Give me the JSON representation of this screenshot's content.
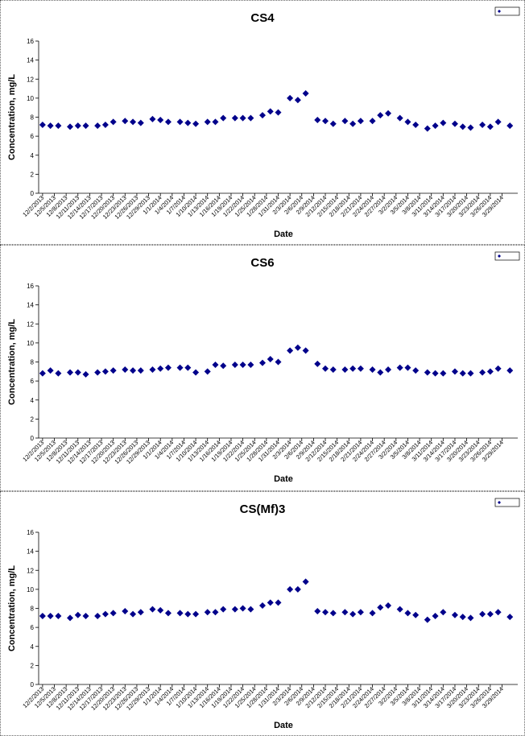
{
  "colors": {
    "marker": "#00008B",
    "axis": "#000000",
    "border": "#666666"
  },
  "chart_data": [
    {
      "type": "scatter",
      "title": "CS4",
      "xlabel": "Date",
      "ylabel": "Concentration, mg/L",
      "ylim": [
        0,
        16
      ],
      "yticks": [
        "0",
        "2",
        "4",
        "6",
        "8",
        "10",
        "12",
        "14",
        "16"
      ],
      "xlim": [
        "12/1/2013",
        "4/2/2014"
      ],
      "x_tick_labels": [
        "12/2/2013",
        "12/5/2013",
        "12/8/2013",
        "12/11/2013",
        "12/14/2013",
        "12/17/2013",
        "12/20/2013",
        "12/23/2013",
        "12/26/2013",
        "12/29/2013",
        "1/1/2014",
        "1/4/2014",
        "1/7/2014",
        "1/10/2014",
        "1/13/2014",
        "1/16/2014",
        "1/19/2014",
        "1/22/2014",
        "1/25/2014",
        "1/28/2014",
        "1/31/2014",
        "2/3/2014",
        "2/6/2014",
        "2/9/2014",
        "2/12/2014",
        "2/15/2014",
        "2/18/2014",
        "2/21/2014",
        "2/24/2014",
        "2/27/2014",
        "3/2/2014",
        "3/5/2014",
        "3/8/2014",
        "3/11/2014",
        "3/14/2014",
        "3/17/2014",
        "3/20/2014",
        "3/23/2014",
        "3/26/2014",
        "3/29/2014"
      ],
      "legend": "top-right",
      "series": [
        {
          "marker": "diamond",
          "x": [
            "12/2/2013",
            "12/4/2013",
            "12/6/2013",
            "12/9/2013",
            "12/11/2013",
            "12/13/2013",
            "12/16/2013",
            "12/18/2013",
            "12/20/2013",
            "12/23/2013",
            "12/25/2013",
            "12/27/2013",
            "12/30/2013",
            "1/1/2014",
            "1/3/2014",
            "1/6/2014",
            "1/8/2014",
            "1/10/2014",
            "1/13/2014",
            "1/15/2014",
            "1/17/2014",
            "1/20/2014",
            "1/22/2014",
            "1/24/2014",
            "1/27/2014",
            "1/29/2014",
            "1/31/2014",
            "2/3/2014",
            "2/5/2014",
            "2/7/2014",
            "2/10/2014",
            "2/12/2014",
            "2/14/2014",
            "2/17/2014",
            "2/19/2014",
            "2/21/2014",
            "2/24/2014",
            "2/26/2014",
            "2/28/2014",
            "3/3/2014",
            "3/5/2014",
            "3/7/2014",
            "3/10/2014",
            "3/12/2014",
            "3/14/2014",
            "3/17/2014",
            "3/19/2014",
            "3/21/2014",
            "3/24/2014",
            "3/26/2014",
            "3/28/2014",
            "3/31/2014"
          ],
          "y": [
            7.2,
            7.1,
            7.1,
            7.0,
            7.1,
            7.1,
            7.1,
            7.2,
            7.5,
            7.6,
            7.5,
            7.4,
            7.8,
            7.7,
            7.5,
            7.5,
            7.4,
            7.3,
            7.5,
            7.5,
            7.9,
            7.9,
            7.9,
            7.9,
            8.2,
            8.6,
            8.5,
            10.0,
            9.8,
            10.5,
            7.7,
            7.6,
            7.3,
            7.6,
            7.3,
            7.6,
            7.6,
            8.2,
            8.4,
            7.9,
            7.5,
            7.2,
            6.8,
            7.1,
            7.4,
            7.3,
            7.0,
            6.9,
            7.2,
            7.0,
            7.5,
            7.1
          ]
        }
      ]
    },
    {
      "type": "scatter",
      "title": "CS6",
      "xlabel": "Date",
      "ylabel": "Concentration, mg/L",
      "ylim": [
        0,
        16
      ],
      "yticks": [
        "0",
        "2",
        "4",
        "6",
        "8",
        "10",
        "12",
        "14",
        "16"
      ],
      "xlim": [
        "12/1/2013",
        "4/2/2014"
      ],
      "x_tick_labels": [
        "12/2/2013",
        "12/5/2013",
        "12/8/2013",
        "12/11/2013",
        "12/14/2013",
        "12/17/2013",
        "12/20/2013",
        "12/23/2013",
        "12/26/2013",
        "12/29/2013",
        "1/1/2014",
        "1/4/2014",
        "1/7/2014",
        "1/10/2014",
        "1/13/2014",
        "1/16/2014",
        "1/19/2014",
        "1/22/2014",
        "1/25/2014",
        "1/28/2014",
        "1/31/2014",
        "2/3/2014",
        "2/6/2014",
        "2/9/2014",
        "2/12/2014",
        "2/15/2014",
        "2/18/2014",
        "2/21/2014",
        "2/24/2014",
        "2/27/2014",
        "3/2/2014",
        "3/5/2014",
        "3/8/2014",
        "3/11/2014",
        "3/14/2014",
        "3/17/2014",
        "3/20/2014",
        "3/23/2014",
        "3/26/2014",
        "3/29/2014"
      ],
      "legend": "top-right",
      "series": [
        {
          "marker": "diamond",
          "x": [
            "12/2/2013",
            "12/4/2013",
            "12/6/2013",
            "12/9/2013",
            "12/11/2013",
            "12/13/2013",
            "12/16/2013",
            "12/18/2013",
            "12/20/2013",
            "12/23/2013",
            "12/25/2013",
            "12/27/2013",
            "12/30/2013",
            "1/1/2014",
            "1/3/2014",
            "1/6/2014",
            "1/8/2014",
            "1/10/2014",
            "1/13/2014",
            "1/15/2014",
            "1/17/2014",
            "1/20/2014",
            "1/22/2014",
            "1/24/2014",
            "1/27/2014",
            "1/29/2014",
            "1/31/2014",
            "2/3/2014",
            "2/5/2014",
            "2/7/2014",
            "2/10/2014",
            "2/12/2014",
            "2/14/2014",
            "2/17/2014",
            "2/19/2014",
            "2/21/2014",
            "2/24/2014",
            "2/26/2014",
            "2/28/2014",
            "3/3/2014",
            "3/5/2014",
            "3/7/2014",
            "3/10/2014",
            "3/12/2014",
            "3/14/2014",
            "3/17/2014",
            "3/19/2014",
            "3/21/2014",
            "3/24/2014",
            "3/26/2014",
            "3/28/2014",
            "3/31/2014"
          ],
          "y": [
            6.8,
            7.1,
            6.8,
            6.9,
            6.9,
            6.7,
            6.9,
            7.0,
            7.1,
            7.2,
            7.1,
            7.1,
            7.2,
            7.3,
            7.4,
            7.4,
            7.4,
            6.9,
            7.0,
            7.7,
            7.6,
            7.7,
            7.7,
            7.7,
            7.9,
            8.3,
            8.0,
            9.2,
            9.5,
            9.2,
            7.8,
            7.3,
            7.2,
            7.2,
            7.3,
            7.3,
            7.2,
            6.9,
            7.2,
            7.4,
            7.4,
            7.1,
            6.9,
            6.8,
            6.8,
            7.0,
            6.8,
            6.8,
            6.9,
            7.0,
            7.3,
            7.1
          ]
        }
      ]
    },
    {
      "type": "scatter",
      "title": "CS(Mf)3",
      "xlabel": "Date",
      "ylabel": "Concentration, mg/L",
      "ylim": [
        0,
        16
      ],
      "yticks": [
        "0",
        "2",
        "4",
        "6",
        "8",
        "10",
        "12",
        "14",
        "16"
      ],
      "xlim": [
        "12/1/2013",
        "4/2/2014"
      ],
      "x_tick_labels": [
        "12/2/2013",
        "12/5/2013",
        "12/8/2013",
        "12/11/2013",
        "12/14/2013",
        "12/17/2013",
        "12/20/2013",
        "12/23/2013",
        "12/26/2013",
        "12/29/2013",
        "1/1/2014",
        "1/4/2014",
        "1/7/2014",
        "1/10/2014",
        "1/13/2014",
        "1/16/2014",
        "1/19/2014",
        "1/22/2014",
        "1/25/2014",
        "1/28/2014",
        "1/31/2014",
        "2/3/2014",
        "2/6/2014",
        "2/9/2014",
        "2/12/2014",
        "2/15/2014",
        "2/18/2014",
        "2/21/2014",
        "2/24/2014",
        "2/27/2014",
        "3/2/2014",
        "3/5/2014",
        "3/8/2014",
        "3/11/2014",
        "3/14/2014",
        "3/17/2014",
        "3/20/2014",
        "3/23/2014",
        "3/26/2014",
        "3/29/2014"
      ],
      "legend": "top-right",
      "series": [
        {
          "marker": "diamond",
          "x": [
            "12/2/2013",
            "12/4/2013",
            "12/6/2013",
            "12/9/2013",
            "12/11/2013",
            "12/13/2013",
            "12/16/2013",
            "12/18/2013",
            "12/20/2013",
            "12/23/2013",
            "12/25/2013",
            "12/27/2013",
            "12/30/2013",
            "1/1/2014",
            "1/3/2014",
            "1/6/2014",
            "1/8/2014",
            "1/10/2014",
            "1/13/2014",
            "1/15/2014",
            "1/17/2014",
            "1/20/2014",
            "1/22/2014",
            "1/24/2014",
            "1/27/2014",
            "1/29/2014",
            "1/31/2014",
            "2/3/2014",
            "2/5/2014",
            "2/7/2014",
            "2/10/2014",
            "2/12/2014",
            "2/14/2014",
            "2/17/2014",
            "2/19/2014",
            "2/21/2014",
            "2/24/2014",
            "2/26/2014",
            "2/28/2014",
            "3/3/2014",
            "3/5/2014",
            "3/7/2014",
            "3/10/2014",
            "3/12/2014",
            "3/14/2014",
            "3/17/2014",
            "3/19/2014",
            "3/21/2014",
            "3/24/2014",
            "3/26/2014",
            "3/28/2014",
            "3/31/2014"
          ],
          "y": [
            7.2,
            7.2,
            7.2,
            7.0,
            7.3,
            7.2,
            7.2,
            7.4,
            7.5,
            7.7,
            7.4,
            7.6,
            7.9,
            7.8,
            7.5,
            7.5,
            7.4,
            7.4,
            7.6,
            7.6,
            7.9,
            7.9,
            8.0,
            7.9,
            8.3,
            8.6,
            8.6,
            10.0,
            10.0,
            10.8,
            7.7,
            7.6,
            7.5,
            7.6,
            7.4,
            7.6,
            7.5,
            8.1,
            8.3,
            7.9,
            7.5,
            7.3,
            6.8,
            7.2,
            7.6,
            7.3,
            7.1,
            7.0,
            7.4,
            7.4,
            7.6,
            7.1
          ]
        }
      ]
    }
  ]
}
